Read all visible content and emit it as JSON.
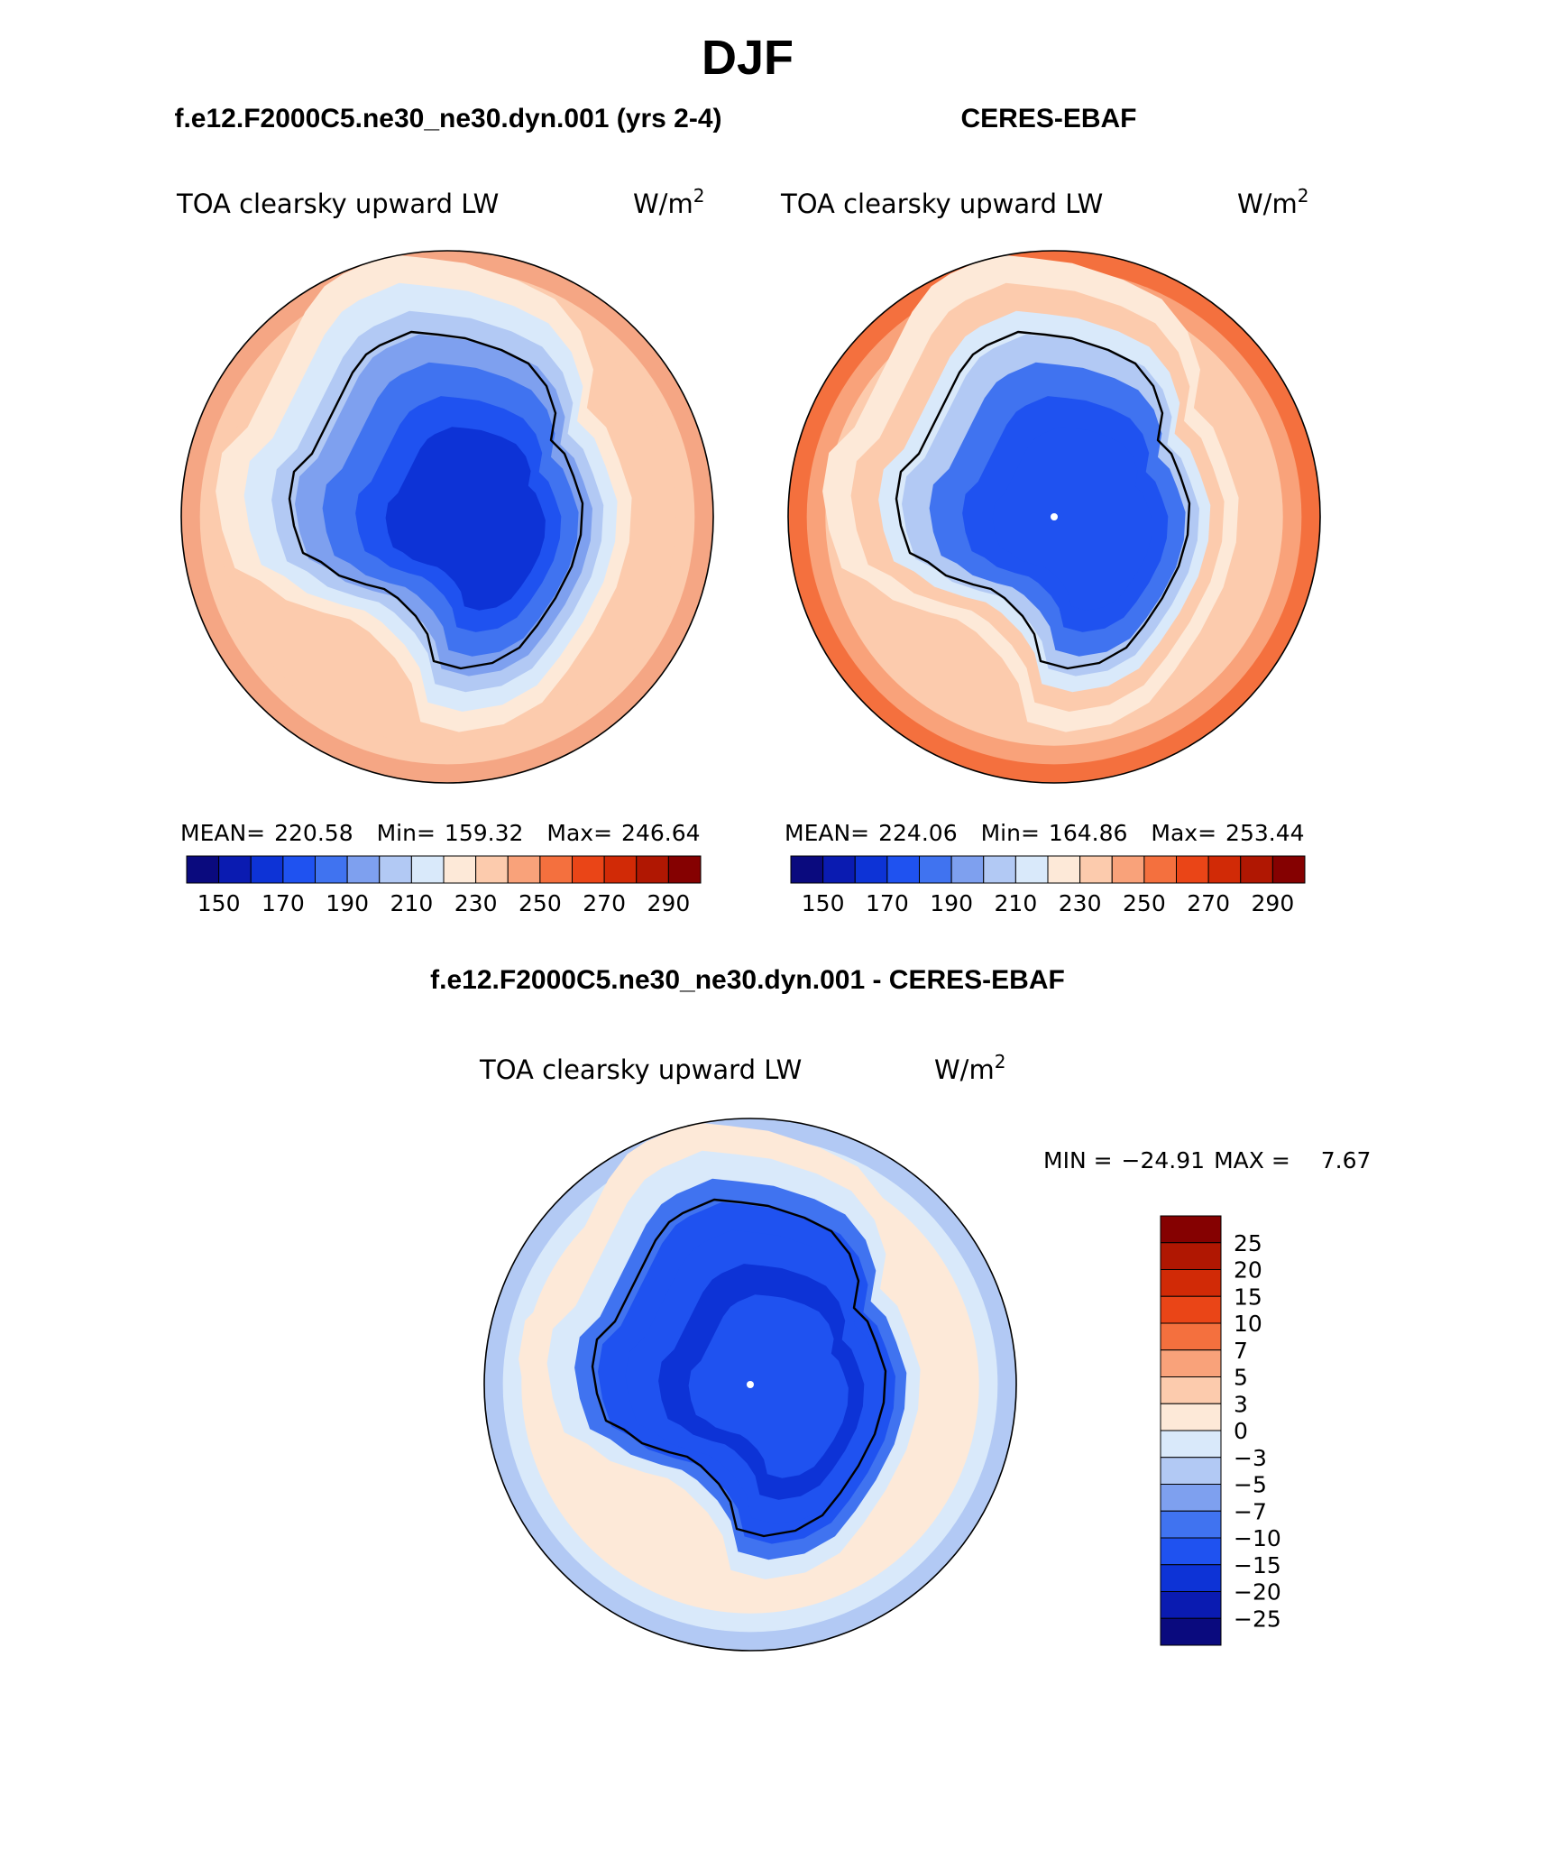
{
  "page_title": "DJF",
  "chart_data": [
    {
      "type": "heatmap",
      "projection": "south polar stereographic",
      "title": "f.e12.F2000C5.ne30_ne30.dyn.001 (yrs 2-4)",
      "left_label": "TOA clearsky upward LW",
      "units_base": "W/m",
      "units_exp": "2",
      "stats": {
        "mean_label": "MEAN=",
        "mean": "220.58",
        "min_label": "Min=",
        "min": "159.32",
        "max_label": "Max=",
        "max": "246.64"
      },
      "colorbar": {
        "ticks": [
          "150",
          "170",
          "190",
          "210",
          "230",
          "250",
          "270",
          "290"
        ],
        "colors": [
          "#0a0a7e",
          "#0a1bb1",
          "#0d33d6",
          "#1f52f0",
          "#4073f0",
          "#7ea0ef",
          "#b2c9f4",
          "#d9e9fa",
          "#fde9d8",
          "#fccbad",
          "#f9a27a",
          "#f4703e",
          "#ea4517",
          "#d12a06",
          "#b01702",
          "#850101"
        ]
      },
      "rings": [
        "#f5a684",
        "#fccbad",
        "#fccbad",
        "#fde9d8",
        "#d9e9fa",
        "#b2c9f4",
        "#7ea0ef",
        "#4073f0",
        "#1f52f0",
        "#0d33d6"
      ]
    },
    {
      "type": "heatmap",
      "projection": "south polar stereographic",
      "title": "CERES-EBAF",
      "left_label": "TOA clearsky upward LW",
      "units_base": "W/m",
      "units_exp": "2",
      "stats": {
        "mean_label": "MEAN=",
        "mean": "224.06",
        "min_label": "Min=",
        "min": "164.86",
        "max_label": "Max=",
        "max": "253.44"
      },
      "colorbar": {
        "ticks": [
          "150",
          "170",
          "190",
          "210",
          "230",
          "250",
          "270",
          "290"
        ],
        "colors": [
          "#0a0a7e",
          "#0a1bb1",
          "#0d33d6",
          "#1f52f0",
          "#4073f0",
          "#7ea0ef",
          "#b2c9f4",
          "#d9e9fa",
          "#fde9d8",
          "#fccbad",
          "#f9a27a",
          "#f4703e",
          "#ea4517",
          "#d12a06",
          "#b01702",
          "#850101"
        ]
      },
      "rings": [
        "#f4703e",
        "#f9a27a",
        "#fccbad",
        "#fde9d8",
        "#fccbad",
        "#d9e9fa",
        "#b2c9f4",
        "#4073f0",
        "#1f52f0",
        "#1f52f0"
      ]
    },
    {
      "type": "heatmap",
      "projection": "south polar stereographic",
      "title": "f.e12.F2000C5.ne30_ne30.dyn.001 - CERES-EBAF",
      "left_label": "TOA clearsky upward LW",
      "units_base": "W/m",
      "units_exp": "2",
      "min_max": {
        "min_label": "MIN =",
        "min": "−24.91",
        "max_label": "MAX =",
        "max": "7.67"
      },
      "colorbar": {
        "ticks": [
          "25",
          "20",
          "15",
          "10",
          "7",
          "5",
          "3",
          "0",
          "−3",
          "−5",
          "−7",
          "−10",
          "−15",
          "−20",
          "−25"
        ],
        "colors": [
          "#850101",
          "#b01702",
          "#d12a06",
          "#ea4517",
          "#f4703e",
          "#f9a27a",
          "#fccbad",
          "#fde9d8",
          "#d9e9fa",
          "#b2c9f4",
          "#7ea0ef",
          "#4073f0",
          "#1f52f0",
          "#0d33d6",
          "#0a1bb1",
          "#0a0a7e"
        ]
      },
      "rings": [
        "#b2c9f4",
        "#d9e9fa",
        "#fde9d8",
        "#fde9d8",
        "#d9e9fa",
        "#4073f0",
        "#1f52f0",
        "#1f52f0",
        "#0d33d6",
        "#1f52f0"
      ]
    }
  ]
}
